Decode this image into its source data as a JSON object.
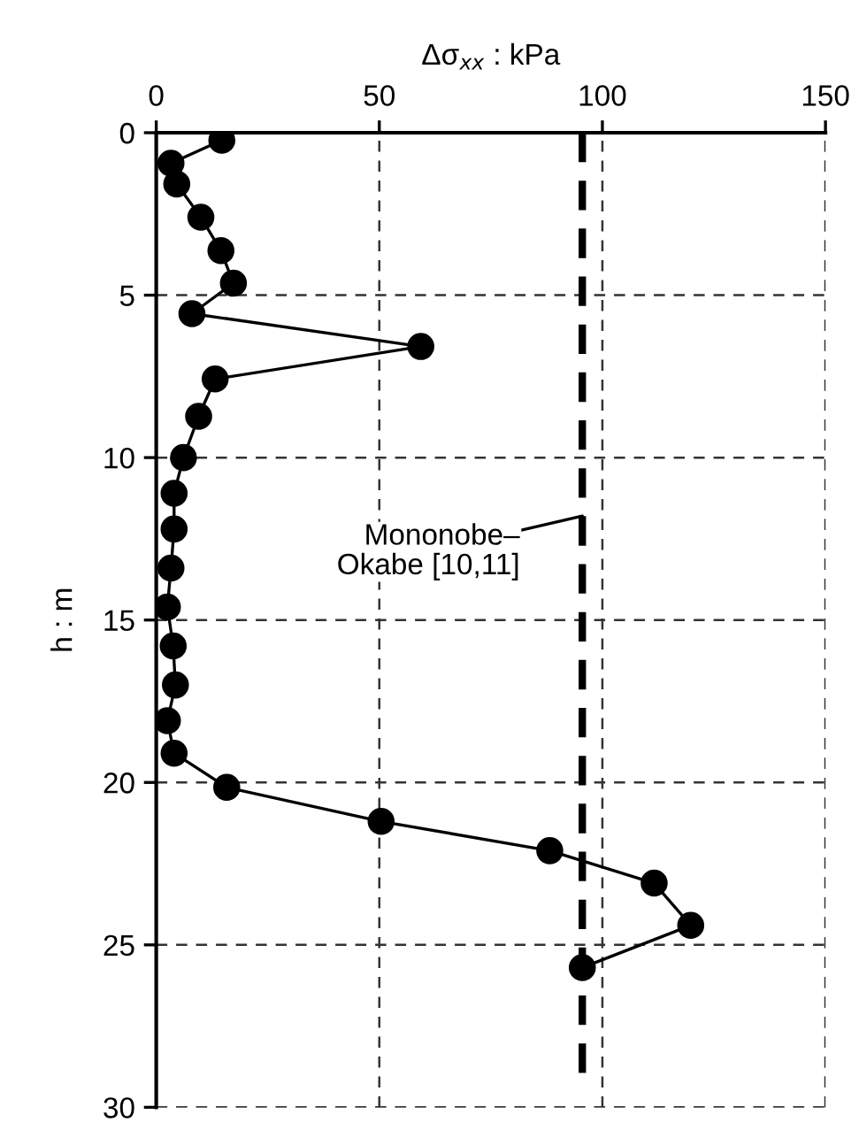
{
  "chart_data": {
    "type": "line",
    "xlabel": "Δσ$_{xx}$ : kPa",
    "ylabel": "h : m",
    "xlim": [
      0,
      150
    ],
    "xticks": [
      0,
      50,
      100,
      150
    ],
    "ylim": [
      30,
      0
    ],
    "yticks": [
      0,
      5,
      10,
      15,
      20,
      25,
      30
    ],
    "grid": true,
    "marker": "circle",
    "line_style": "solid",
    "series": [
      {
        "color": "#000000",
        "x": [
          14.7,
          3.3,
          4.6,
          10.0,
          14.5,
          17.3,
          8.0,
          59.3,
          13.2,
          9.5,
          6.1,
          4.0,
          4.0,
          3.3,
          2.5,
          3.8,
          4.3,
          2.5,
          4.0,
          15.8,
          50.4,
          88.2,
          111.6,
          119.8,
          95.5
        ],
        "values": [
          0.23,
          0.94,
          1.58,
          2.6,
          3.63,
          4.63,
          5.57,
          6.58,
          7.58,
          8.73,
          10.0,
          11.1,
          12.2,
          13.4,
          14.6,
          15.8,
          17.0,
          18.1,
          19.1,
          20.15,
          21.2,
          22.1,
          23.1,
          24.4,
          25.7
        ]
      }
    ],
    "ref_lines": [
      {
        "axis": "x",
        "value": 95.5,
        "label": "Mononobe–\nOkabe [10,11]",
        "color": "#000000",
        "line_style": "dashed"
      }
    ]
  }
}
